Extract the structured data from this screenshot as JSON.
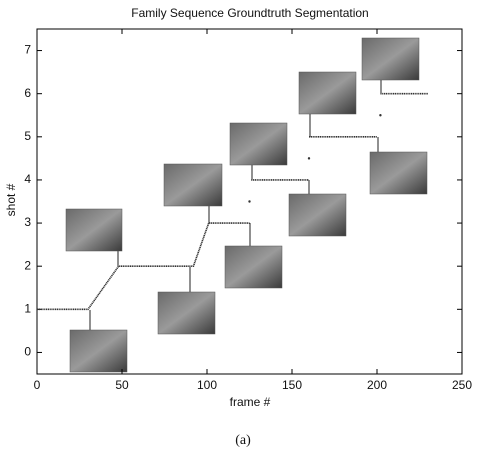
{
  "chart_data": {
    "type": "line",
    "title": "Family Sequence Groundtruth Segmentation",
    "xlabel": "frame #",
    "ylabel": "shot #",
    "xlim": [
      0,
      250
    ],
    "xticks": [
      0,
      50,
      100,
      150,
      200,
      250
    ],
    "ylim": [
      -0.5,
      7.5
    ],
    "yticks": [
      0,
      1,
      2,
      3,
      4,
      5,
      6,
      7
    ],
    "series": [
      {
        "color": "#333333",
        "x": [
          0,
          30,
          48,
          92,
          101,
          125,
          125.5,
          126,
          160,
          160,
          160,
          200,
          201,
          202,
          230
        ],
        "values": [
          1,
          1,
          2,
          2,
          3,
          3,
          null,
          4,
          4,
          null,
          5,
          5,
          null,
          6,
          6
        ]
      },
      {
        "color": "#333333",
        "x": [
          125,
          160,
          202
        ],
        "values": [
          3.5,
          4.5,
          5.5
        ],
        "markers_only": true
      }
    ]
  },
  "caption": "(a)"
}
